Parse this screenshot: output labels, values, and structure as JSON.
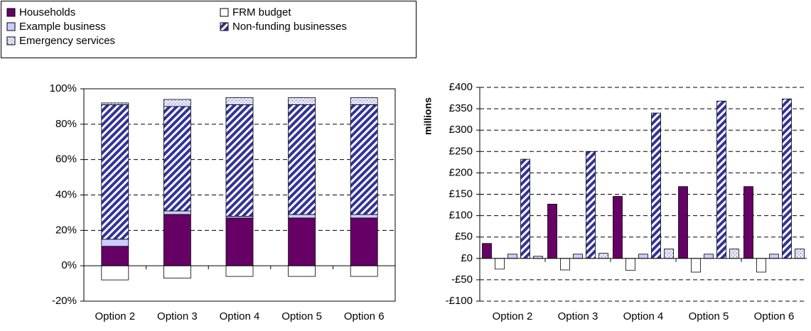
{
  "chart_data": [
    {
      "type": "stacked_bar",
      "categories": [
        "Option 2",
        "Option 3",
        "Option 4",
        "Option 5",
        "Option 6"
      ],
      "series": [
        {
          "name": "Households",
          "color": "#660066",
          "values": [
            11,
            29,
            27,
            27,
            27
          ]
        },
        {
          "name": "FRM budget",
          "color": "#ffffff",
          "values": [
            -8,
            -7,
            -6,
            -6,
            -6
          ]
        },
        {
          "name": "Example business",
          "color": "#ccccff",
          "values": [
            4,
            2,
            1,
            2,
            2
          ]
        },
        {
          "name": "Non-funding businesses",
          "color": "#333399",
          "pattern": "hatch",
          "values": [
            76,
            59,
            63,
            62,
            62
          ]
        },
        {
          "name": "Emergency services",
          "color": "#ccccee",
          "pattern": "dots",
          "values": [
            1,
            4,
            4,
            4,
            4
          ]
        }
      ],
      "ylim": [
        -20,
        100
      ],
      "yticks": [
        {
          "value": -20,
          "label": "-20%"
        },
        {
          "value": 0,
          "label": "0%"
        },
        {
          "value": 20,
          "label": "20%"
        },
        {
          "value": 40,
          "label": "40%"
        },
        {
          "value": 60,
          "label": "60%"
        },
        {
          "value": 80,
          "label": "80%"
        },
        {
          "value": 100,
          "label": "100%"
        }
      ],
      "grid": true
    },
    {
      "type": "grouped_bar",
      "ylabel": "millions",
      "categories": [
        "Option 2",
        "Option 3",
        "Option 4",
        "Option 5",
        "Option 6"
      ],
      "series": [
        {
          "color": "#660066",
          "values": [
            35,
            127,
            145,
            168,
            168
          ]
        },
        {
          "color": "#ffffff",
          "values": [
            -25,
            -27,
            -28,
            -32,
            -32
          ]
        },
        {
          "color": "#ccccff",
          "values": [
            10,
            10,
            10,
            10,
            10
          ]
        },
        {
          "color": "#333399",
          "pattern": "hatch",
          "values": [
            232,
            250,
            340,
            368,
            373
          ]
        },
        {
          "color": "#ccccee",
          "pattern": "dots",
          "values": [
            5,
            12,
            22,
            22,
            22
          ]
        }
      ],
      "ylim": [
        -100,
        400
      ],
      "yticks": [
        {
          "value": -100,
          "label": "-£100"
        },
        {
          "value": -50,
          "label": "-£50"
        },
        {
          "value": 0,
          "label": "£0"
        },
        {
          "value": 50,
          "label": "£50"
        },
        {
          "value": 100,
          "label": "£100"
        },
        {
          "value": 150,
          "label": "£150"
        },
        {
          "value": 200,
          "label": "£200"
        },
        {
          "value": 250,
          "label": "£250"
        },
        {
          "value": 300,
          "label": "£300"
        },
        {
          "value": 350,
          "label": "£350"
        },
        {
          "value": 400,
          "label": "£400"
        }
      ],
      "grid": true
    }
  ]
}
